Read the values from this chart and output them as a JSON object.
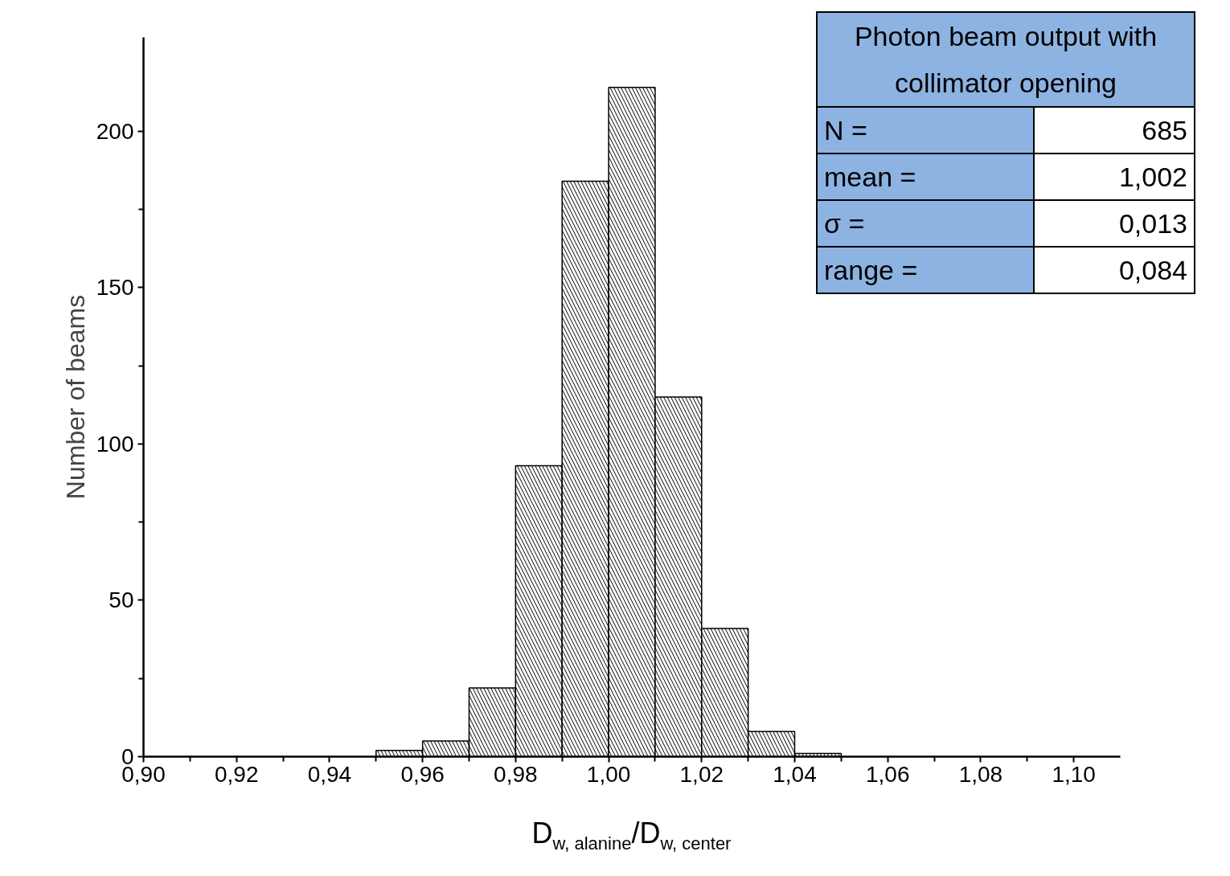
{
  "chart_data": {
    "type": "histogram",
    "xlabel": "D$_{w, alanine}$/D$_{w, center}$",
    "ylabel": "Number of beams",
    "bins": [
      0.95,
      0.96,
      0.97,
      0.98,
      0.99,
      1.0,
      1.01,
      1.02,
      1.03,
      1.04,
      1.05
    ],
    "values": [
      2,
      5,
      22,
      93,
      184,
      214,
      115,
      41,
      8,
      1
    ],
    "color": "#000000",
    "xlim": [
      0.9,
      1.11
    ],
    "xticks": [
      {
        "value": 0.9,
        "label": "0,90"
      },
      {
        "value": 0.92,
        "label": "0,92"
      },
      {
        "value": 0.94,
        "label": "0,94"
      },
      {
        "value": 0.96,
        "label": "0,96"
      },
      {
        "value": 0.98,
        "label": "0,98"
      },
      {
        "value": 1.0,
        "label": "1,00"
      },
      {
        "value": 1.02,
        "label": "1,02"
      },
      {
        "value": 1.04,
        "label": "1,04"
      },
      {
        "value": 1.06,
        "label": "1,06"
      },
      {
        "value": 1.08,
        "label": "1,08"
      },
      {
        "value": 1.1,
        "label": "1,10"
      }
    ],
    "ylim": [
      0,
      230
    ],
    "yticks": [
      0,
      50,
      100,
      150,
      200
    ],
    "grid": false,
    "annotations": [
      "Photon beam output with collimator opening",
      "N =",
      "685",
      "mean =",
      "1,002",
      "σ =",
      "0,013",
      "range =",
      "0,084"
    ]
  }
}
